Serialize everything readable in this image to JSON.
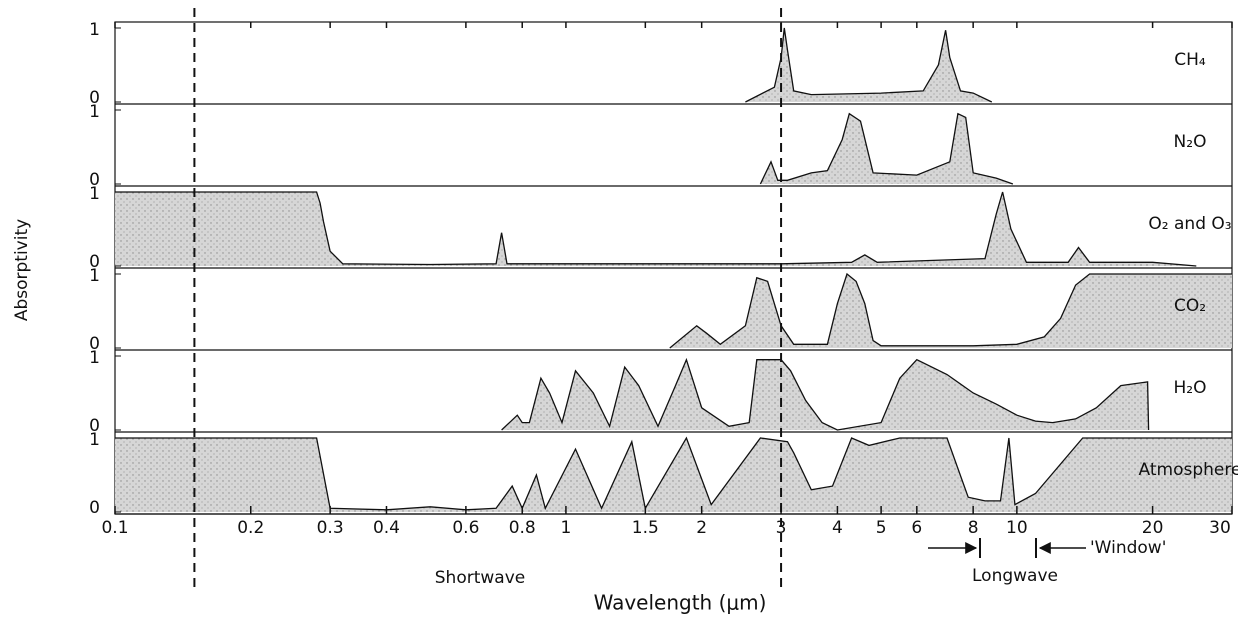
{
  "chart_data": {
    "type": "area",
    "xlabel": "Wavelength (μm)",
    "ylabel": "Absorptivity",
    "log_x": true,
    "xlim": [
      0.1,
      30
    ],
    "xticks": [
      0.1,
      0.2,
      0.3,
      0.4,
      0.6,
      0.8,
      1,
      1.5,
      2,
      3,
      4,
      5,
      6,
      8,
      10,
      20,
      30
    ],
    "ylim": [
      0,
      1
    ],
    "yticks": [
      0,
      1
    ],
    "color": "#d6d6d6",
    "dividers": [
      0.15,
      3
    ],
    "annotations": [
      "Shortwave",
      "Longwave",
      "'Window'"
    ],
    "series": [
      {
        "name": "CH₄",
        "x": [
          2.5,
          2.9,
          3.0,
          3.05,
          3.1,
          3.2,
          3.5,
          5,
          6.2,
          6.7,
          6.95,
          7.1,
          7.5,
          8,
          8.8
        ],
        "values": [
          0,
          0.2,
          0.6,
          1.0,
          0.7,
          0.15,
          0.1,
          0.12,
          0.15,
          0.5,
          0.97,
          0.6,
          0.15,
          0.12,
          0
        ]
      },
      {
        "name": "N₂O",
        "x": [
          2.7,
          2.85,
          2.95,
          3.1,
          3.5,
          3.8,
          4.1,
          4.25,
          4.5,
          4.8,
          6,
          7.1,
          7.4,
          7.7,
          8,
          9,
          9.8
        ],
        "values": [
          0,
          0.3,
          0.05,
          0.05,
          0.15,
          0.18,
          0.6,
          0.95,
          0.85,
          0.15,
          0.12,
          0.3,
          0.95,
          0.9,
          0.15,
          0.08,
          0
        ]
      },
      {
        "name": "O₂ and O₃",
        "x": [
          0.1,
          0.28,
          0.285,
          0.29,
          0.3,
          0.32,
          0.5,
          0.7,
          0.72,
          0.74,
          1,
          3,
          4.3,
          4.6,
          4.9,
          8.5,
          9.0,
          9.3,
          9.7,
          10.5,
          13,
          13.7,
          14.5,
          20,
          25
        ],
        "values": [
          1,
          1,
          0.85,
          0.6,
          0.2,
          0.03,
          0.02,
          0.03,
          0.45,
          0.03,
          0.03,
          0.03,
          0.05,
          0.15,
          0.05,
          0.1,
          0.7,
          1.0,
          0.5,
          0.05,
          0.05,
          0.25,
          0.05,
          0.05,
          0
        ]
      },
      {
        "name": "CO₂",
        "x": [
          1.7,
          1.95,
          2.05,
          2.2,
          2.5,
          2.65,
          2.8,
          3.0,
          3.2,
          3.8,
          4.0,
          4.2,
          4.4,
          4.6,
          4.8,
          5,
          8,
          10,
          11.5,
          12.5,
          13.5,
          14.5,
          30
        ],
        "values": [
          0,
          0.3,
          0.2,
          0.05,
          0.3,
          0.95,
          0.9,
          0.3,
          0.05,
          0.05,
          0.6,
          1.0,
          0.9,
          0.6,
          0.1,
          0.03,
          0.03,
          0.05,
          0.15,
          0.4,
          0.85,
          1,
          1
        ]
      },
      {
        "name": "H₂O",
        "x": [
          0.72,
          0.78,
          0.8,
          0.83,
          0.88,
          0.92,
          0.98,
          1.05,
          1.15,
          1.25,
          1.35,
          1.45,
          1.6,
          1.75,
          1.85,
          2.0,
          2.3,
          2.55,
          2.65,
          3.0,
          3.15,
          3.4,
          3.7,
          4.0,
          5.0,
          5.5,
          6,
          7,
          8,
          9,
          10,
          11,
          12,
          13.5,
          15,
          17,
          19.5,
          19.6
        ],
        "values": [
          0,
          0.2,
          0.1,
          0.1,
          0.7,
          0.5,
          0.1,
          0.8,
          0.5,
          0.05,
          0.85,
          0.6,
          0.05,
          0.6,
          0.95,
          0.3,
          0.05,
          0.1,
          0.95,
          0.95,
          0.8,
          0.4,
          0.1,
          0,
          0.1,
          0.7,
          0.95,
          0.75,
          0.5,
          0.35,
          0.2,
          0.12,
          0.1,
          0.15,
          0.3,
          0.6,
          0.65,
          0
        ]
      },
      {
        "name": "Atmosphere",
        "x": [
          0.1,
          0.28,
          0.3,
          0.4,
          0.5,
          0.6,
          0.7,
          0.76,
          0.8,
          0.86,
          0.9,
          1.05,
          1.2,
          1.4,
          1.5,
          1.85,
          2.1,
          2.7,
          3.1,
          3.2,
          3.5,
          3.9,
          4.3,
          4.7,
          5.5,
          7,
          7.8,
          8.5,
          9.2,
          9.6,
          9.9,
          11,
          14,
          30
        ],
        "values": [
          1,
          1,
          0.05,
          0.03,
          0.07,
          0.03,
          0.05,
          0.35,
          0.05,
          0.5,
          0.05,
          0.85,
          0.05,
          0.95,
          0.05,
          1,
          0.1,
          1.0,
          0.95,
          0.8,
          0.3,
          0.35,
          1.0,
          0.9,
          1,
          1,
          0.2,
          0.15,
          0.15,
          1.0,
          0.1,
          0.25,
          1,
          1
        ]
      }
    ]
  }
}
